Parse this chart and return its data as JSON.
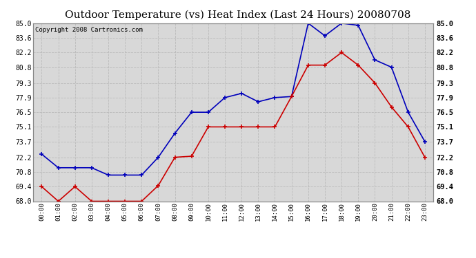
{
  "title": "Outdoor Temperature (vs) Heat Index (Last 24 Hours) 20080708",
  "copyright": "Copyright 2008 Cartronics.com",
  "hours": [
    "00:00",
    "01:00",
    "02:00",
    "03:00",
    "04:00",
    "05:00",
    "06:00",
    "07:00",
    "08:00",
    "09:00",
    "10:00",
    "11:00",
    "12:00",
    "13:00",
    "14:00",
    "15:00",
    "16:00",
    "17:00",
    "18:00",
    "19:00",
    "20:00",
    "21:00",
    "22:00",
    "23:00"
  ],
  "blue_temp": [
    72.5,
    71.2,
    71.2,
    71.2,
    70.5,
    70.5,
    70.5,
    72.2,
    74.5,
    76.5,
    76.5,
    77.9,
    78.3,
    77.5,
    77.9,
    78.0,
    85.0,
    83.8,
    85.0,
    84.8,
    81.5,
    80.8,
    76.5,
    73.7
  ],
  "red_heat": [
    69.4,
    68.0,
    69.4,
    68.0,
    68.0,
    68.0,
    68.0,
    69.5,
    72.2,
    72.3,
    75.1,
    75.1,
    75.1,
    75.1,
    75.1,
    78.0,
    81.0,
    81.0,
    82.2,
    81.0,
    79.3,
    77.0,
    75.1,
    72.2
  ],
  "ylim_min": 68.0,
  "ylim_max": 85.0,
  "yticks": [
    68.0,
    69.4,
    70.8,
    72.2,
    73.7,
    75.1,
    76.5,
    77.9,
    79.3,
    80.8,
    82.2,
    83.6,
    85.0
  ],
  "blue_color": "#0000bb",
  "red_color": "#cc0000",
  "bg_color": "#ffffff",
  "plot_bg_color": "#d8d8d8",
  "grid_color": "#bbbbbb",
  "title_fontsize": 11,
  "copyright_fontsize": 6.5
}
